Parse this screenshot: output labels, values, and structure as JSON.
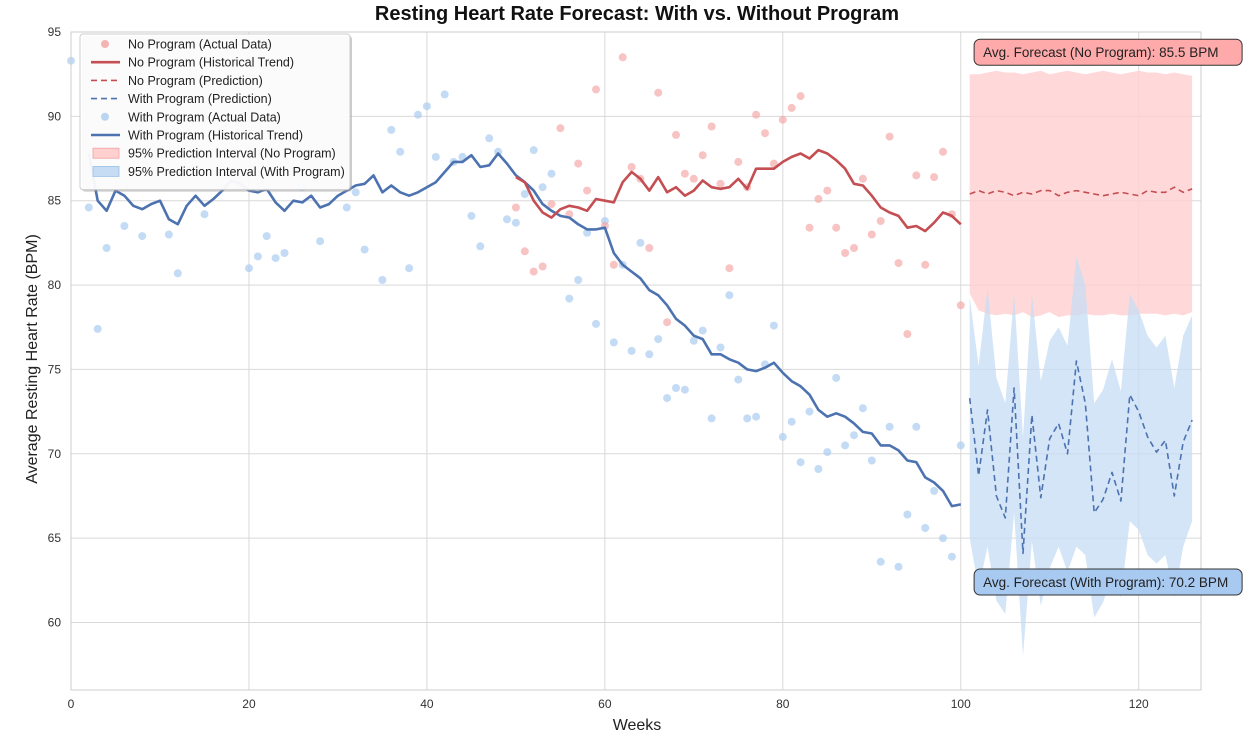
{
  "chart_data": {
    "type": "line",
    "title": "Resting Heart Rate Forecast: With vs. Without Program",
    "xlabel": "Weeks",
    "ylabel": "Average Resting Heart Rate (BPM)",
    "xlim": [
      0,
      127
    ],
    "ylim": [
      56,
      95
    ],
    "x_ticks": [
      0,
      20,
      40,
      60,
      80,
      100,
      120
    ],
    "y_ticks": [
      60,
      65,
      70,
      75,
      80,
      85,
      90,
      95
    ],
    "grid": true,
    "legend_position": "upper-left",
    "colors": {
      "no_program": "#c44e52",
      "no_program_points": "#f4a3a3",
      "no_program_band": "#ffd0d0",
      "with_program": "#4c72b0",
      "with_program_points": "#a9ccf0",
      "with_program_band": "#c6dcf4",
      "annot_no": "#ffaaaa",
      "annot_with": "#a8c9f0"
    },
    "legend": [
      {
        "key": "no_actual",
        "label": "No Program (Actual Data)"
      },
      {
        "key": "no_hist",
        "label": "No Program (Historical Trend)"
      },
      {
        "key": "no_pred",
        "label": "No Program (Prediction)"
      },
      {
        "key": "with_pred",
        "label": "With Program (Prediction)"
      },
      {
        "key": "with_actual",
        "label": "With Program (Actual Data)"
      },
      {
        "key": "with_hist",
        "label": "With Program (Historical Trend)"
      },
      {
        "key": "no_band",
        "label": "95% Prediction Interval (No Program)"
      },
      {
        "key": "with_band",
        "label": "95% Prediction Interval (With Program)"
      }
    ],
    "annotations": {
      "no_program": {
        "text": "Avg. Forecast (No Program): 85.5 BPM",
        "x": 101.5,
        "y": 93.8
      },
      "with_program": {
        "text": "Avg. Forecast (With Program): 70.2 BPM",
        "x": 101.5,
        "y": 62.4
      }
    },
    "series": [
      {
        "key": "with_hist",
        "x": [
          2,
          3,
          4,
          5,
          6,
          7,
          8,
          9,
          10,
          11,
          12,
          13,
          14,
          15,
          16,
          17,
          18,
          19,
          20,
          21,
          22,
          23,
          24,
          25,
          26,
          27,
          28,
          29,
          30,
          31,
          32,
          33,
          34,
          35,
          36,
          37,
          38,
          39,
          40,
          41,
          42,
          43,
          44,
          45,
          46,
          47,
          48,
          49,
          50,
          51,
          52,
          53,
          54,
          55,
          56,
          57,
          58,
          59,
          60,
          61,
          62,
          63,
          64,
          65,
          66,
          67,
          68,
          69,
          70,
          71,
          72,
          73,
          74,
          75,
          76,
          77,
          78,
          79,
          80,
          81,
          82,
          83,
          84,
          85,
          86,
          87,
          88,
          89,
          90,
          91,
          92,
          93,
          94,
          95,
          96,
          97,
          98,
          99,
          100
        ],
        "y": [
          87.8,
          85.0,
          84.4,
          85.6,
          85.3,
          84.7,
          84.5,
          84.8,
          85.0,
          83.9,
          83.6,
          84.7,
          85.3,
          84.7,
          85.1,
          85.6,
          86.2,
          86.0,
          85.6,
          85.5,
          85.7,
          84.9,
          84.4,
          85.0,
          84.9,
          85.3,
          84.6,
          84.8,
          85.3,
          85.6,
          85.9,
          86.0,
          86.5,
          85.5,
          85.9,
          85.5,
          85.3,
          85.5,
          85.8,
          86.1,
          86.7,
          87.3,
          87.3,
          87.7,
          87.0,
          87.1,
          87.8,
          87.2,
          86.5,
          86.1,
          85.6,
          84.8,
          84.4,
          84.1,
          84.0,
          83.6,
          83.3,
          83.3,
          83.4,
          81.9,
          81.2,
          80.8,
          80.4,
          79.7,
          79.4,
          78.8,
          78.0,
          77.6,
          77.0,
          76.8,
          75.9,
          75.9,
          75.6,
          75.4,
          75.0,
          74.9,
          75.1,
          75.4,
          74.8,
          74.3,
          74.0,
          73.5,
          72.6,
          72.2,
          72.4,
          72.2,
          71.8,
          71.3,
          71.2,
          70.5,
          70.5,
          70.2,
          69.6,
          69.5,
          68.6,
          68.3,
          67.8,
          66.9,
          67.0
        ]
      },
      {
        "key": "no_hist",
        "x": [
          50,
          51,
          52,
          53,
          54,
          55,
          56,
          57,
          58,
          59,
          60,
          61,
          62,
          63,
          64,
          65,
          66,
          67,
          68,
          69,
          70,
          71,
          72,
          73,
          74,
          75,
          76,
          77,
          78,
          79,
          80,
          81,
          82,
          83,
          84,
          85,
          86,
          87,
          88,
          89,
          90,
          91,
          92,
          93,
          94,
          95,
          96,
          97,
          98,
          99,
          100
        ],
        "y": [
          86.4,
          86.1,
          85.0,
          84.3,
          84.0,
          84.5,
          84.7,
          84.6,
          84.4,
          85.1,
          85.0,
          84.9,
          86.1,
          86.7,
          86.3,
          85.6,
          86.4,
          85.5,
          85.8,
          85.3,
          85.6,
          86.2,
          85.8,
          85.7,
          85.8,
          86.3,
          85.7,
          86.9,
          86.9,
          86.9,
          87.3,
          87.6,
          87.8,
          87.5,
          88.0,
          87.8,
          87.4,
          86.9,
          86.0,
          85.9,
          85.3,
          84.6,
          84.3,
          84.1,
          83.4,
          83.5,
          83.2,
          83.7,
          84.3,
          84.1,
          83.6
        ]
      },
      {
        "key": "no_pred",
        "x": [
          101,
          102,
          103,
          104,
          105,
          106,
          107,
          108,
          109,
          110,
          111,
          112,
          113,
          114,
          115,
          116,
          117,
          118,
          119,
          120,
          121,
          122,
          123,
          124,
          125,
          126
        ],
        "y": [
          85.4,
          85.6,
          85.4,
          85.6,
          85.5,
          85.3,
          85.5,
          85.4,
          85.6,
          85.6,
          85.3,
          85.5,
          85.6,
          85.5,
          85.4,
          85.3,
          85.4,
          85.5,
          85.4,
          85.3,
          85.6,
          85.5,
          85.5,
          85.8,
          85.5,
          85.7
        ]
      },
      {
        "key": "with_pred",
        "x": [
          101,
          102,
          103,
          104,
          105,
          106,
          107,
          108,
          109,
          110,
          111,
          112,
          113,
          114,
          115,
          116,
          117,
          118,
          119,
          120,
          121,
          122,
          123,
          124,
          125,
          126
        ],
        "y": [
          73.3,
          68.7,
          72.6,
          67.5,
          66.2,
          73.9,
          64.1,
          72.3,
          67.4,
          70.9,
          71.8,
          70.0,
          75.5,
          73.0,
          66.5,
          67.3,
          68.9,
          67.2,
          73.5,
          72.5,
          71.0,
          70.1,
          70.8,
          67.5,
          70.7,
          72.0
        ]
      }
    ],
    "bands": [
      {
        "key": "no_band",
        "x": [
          101,
          102,
          103,
          104,
          105,
          106,
          107,
          108,
          109,
          110,
          111,
          112,
          113,
          114,
          115,
          116,
          117,
          118,
          119,
          120,
          121,
          122,
          123,
          124,
          125,
          126
        ],
        "lower": [
          79.5,
          78.5,
          78.3,
          78.2,
          78.3,
          78.2,
          78.4,
          78.1,
          78.2,
          78.4,
          78.1,
          78.2,
          78.2,
          78.3,
          78.2,
          78.2,
          78.3,
          78.2,
          78.2,
          78.3,
          78.3,
          78.3,
          78.2,
          78.3,
          78.2,
          78.4
        ],
        "upper": [
          92.5,
          92.5,
          92.6,
          92.7,
          92.6,
          92.6,
          92.5,
          92.6,
          92.7,
          92.5,
          92.6,
          92.7,
          92.6,
          92.5,
          92.6,
          92.7,
          92.6,
          92.5,
          92.6,
          92.7,
          92.6,
          92.6,
          92.5,
          92.6,
          92.5,
          92.4
        ]
      },
      {
        "key": "with_band",
        "x": [
          101,
          102,
          103,
          104,
          105,
          106,
          107,
          108,
          109,
          110,
          111,
          112,
          113,
          114,
          115,
          116,
          117,
          118,
          119,
          120,
          121,
          122,
          123,
          124,
          125,
          126
        ],
        "lower": [
          65.0,
          62.0,
          64.5,
          61.3,
          60.5,
          66.5,
          58.0,
          64.8,
          61.0,
          63.2,
          64.5,
          63.0,
          64.5,
          64.0,
          60.3,
          61.2,
          62.8,
          61.5,
          66.0,
          65.5,
          64.0,
          63.5,
          64.0,
          61.5,
          64.5,
          66.0
        ],
        "upper": [
          79.3,
          75.2,
          79.8,
          74.5,
          73.0,
          79.5,
          71.0,
          79.5,
          74.3,
          76.7,
          77.5,
          76.4,
          81.7,
          80.0,
          73.0,
          73.8,
          75.6,
          73.7,
          79.5,
          78.5,
          77.0,
          76.3,
          77.0,
          73.9,
          77.0,
          78.2
        ]
      }
    ],
    "scatter": [
      {
        "key": "with_actual",
        "x": [
          0,
          2,
          3,
          4,
          6,
          8,
          11,
          12,
          15,
          17,
          19,
          20,
          21,
          22,
          23,
          24,
          26,
          28,
          31,
          32,
          33,
          35,
          36,
          37,
          38,
          39,
          40,
          41,
          42,
          43,
          44,
          45,
          46,
          47,
          48,
          49,
          50,
          51,
          52,
          53,
          54,
          56,
          57,
          58,
          59,
          60,
          61,
          62,
          63,
          64,
          65,
          66,
          67,
          68,
          69,
          70,
          71,
          72,
          73,
          74,
          75,
          76,
          77,
          78,
          79,
          80,
          81,
          82,
          83,
          84,
          85,
          86,
          87,
          88,
          89,
          90,
          91,
          92,
          93,
          94,
          95,
          96,
          97,
          98,
          99,
          100
        ],
        "y": [
          93.3,
          84.6,
          77.4,
          82.2,
          83.5,
          82.9,
          83.0,
          80.7,
          84.2,
          86.5,
          85.9,
          81.0,
          81.7,
          82.9,
          81.6,
          81.9,
          85.8,
          82.6,
          84.6,
          85.5,
          82.1,
          80.3,
          89.2,
          87.9,
          81.0,
          90.1,
          90.6,
          87.6,
          91.3,
          87.3,
          87.6,
          84.1,
          82.3,
          88.7,
          87.9,
          83.9,
          83.7,
          85.4,
          88.0,
          85.8,
          86.6,
          79.2,
          80.3,
          83.1,
          77.7,
          83.8,
          76.6,
          81.2,
          76.1,
          82.5,
          75.9,
          76.8,
          73.3,
          73.9,
          73.8,
          76.7,
          77.3,
          72.1,
          76.3,
          79.4,
          74.4,
          72.1,
          72.2,
          75.3,
          77.6,
          71.0,
          71.9,
          69.5,
          72.5,
          69.1,
          70.1,
          74.5,
          70.5,
          71.1,
          72.7,
          69.6,
          63.6,
          71.6,
          63.3,
          66.4,
          71.6,
          65.6,
          67.8,
          65.0,
          63.9,
          70.5
        ]
      },
      {
        "key": "no_actual",
        "x": [
          50,
          51,
          52,
          53,
          54,
          55,
          56,
          57,
          58,
          59,
          60,
          61,
          62,
          63,
          64,
          65,
          66,
          67,
          68,
          69,
          70,
          71,
          72,
          73,
          74,
          75,
          76,
          77,
          78,
          79,
          80,
          81,
          82,
          83,
          84,
          85,
          86,
          87,
          88,
          89,
          90,
          91,
          92,
          93,
          94,
          95,
          96,
          97,
          98,
          99,
          100
        ],
        "y": [
          84.6,
          82.0,
          80.8,
          81.1,
          84.8,
          89.3,
          84.2,
          87.2,
          85.6,
          91.6,
          83.5,
          81.2,
          93.5,
          87.0,
          86.3,
          82.2,
          91.4,
          77.8,
          88.9,
          86.6,
          86.3,
          87.7,
          89.4,
          86.0,
          81.0,
          87.3,
          85.8,
          90.1,
          89.0,
          87.2,
          89.8,
          90.5,
          91.2,
          83.4,
          85.1,
          85.6,
          83.4,
          81.9,
          82.2,
          86.3,
          83.0,
          83.8,
          88.8,
          81.3,
          77.1,
          86.5,
          81.2,
          86.4,
          87.9,
          84.2,
          78.8
        ]
      }
    ]
  }
}
